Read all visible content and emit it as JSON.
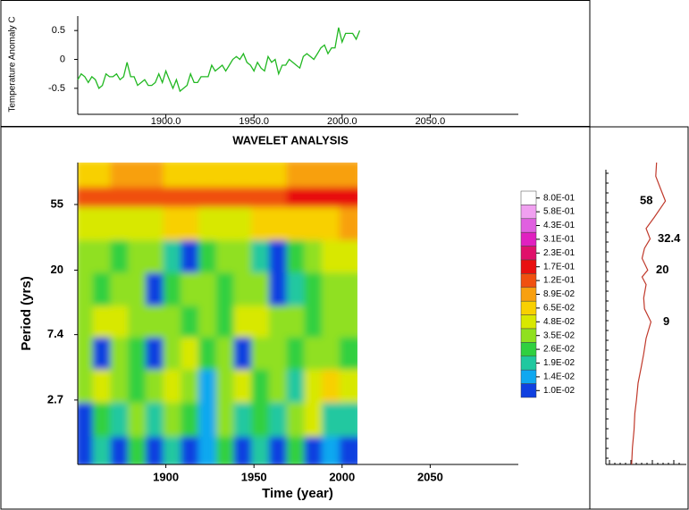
{
  "chart_data": [
    {
      "type": "line",
      "ylabel": "Temperature Anomaly C",
      "color": "#22b822",
      "x": [
        1850,
        1852,
        1854,
        1856,
        1858,
        1860,
        1862,
        1864,
        1866,
        1868,
        1870,
        1872,
        1874,
        1876,
        1878,
        1880,
        1882,
        1884,
        1886,
        1888,
        1890,
        1892,
        1894,
        1896,
        1898,
        1900,
        1902,
        1904,
        1906,
        1908,
        1910,
        1912,
        1914,
        1916,
        1918,
        1920,
        1922,
        1924,
        1926,
        1928,
        1930,
        1932,
        1934,
        1936,
        1938,
        1940,
        1942,
        1944,
        1946,
        1948,
        1950,
        1952,
        1954,
        1956,
        1958,
        1960,
        1962,
        1964,
        1966,
        1968,
        1970,
        1972,
        1974,
        1976,
        1978,
        1980,
        1982,
        1984,
        1986,
        1988,
        1990,
        1992,
        1994,
        1996,
        1998,
        2000,
        2002,
        2004,
        2006,
        2008,
        2010
      ],
      "values": [
        -0.35,
        -0.25,
        -0.3,
        -0.4,
        -0.3,
        -0.35,
        -0.5,
        -0.45,
        -0.25,
        -0.3,
        -0.3,
        -0.25,
        -0.35,
        -0.3,
        -0.05,
        -0.3,
        -0.3,
        -0.45,
        -0.4,
        -0.35,
        -0.45,
        -0.45,
        -0.4,
        -0.25,
        -0.4,
        -0.2,
        -0.35,
        -0.5,
        -0.35,
        -0.55,
        -0.5,
        -0.45,
        -0.25,
        -0.4,
        -0.4,
        -0.3,
        -0.3,
        -0.3,
        -0.1,
        -0.2,
        -0.15,
        -0.1,
        -0.2,
        -0.1,
        0.0,
        0.05,
        0.0,
        0.1,
        -0.05,
        -0.1,
        -0.2,
        -0.05,
        -0.15,
        -0.2,
        0.05,
        -0.05,
        0.0,
        -0.25,
        -0.1,
        -0.1,
        0.0,
        -0.05,
        -0.1,
        -0.15,
        0.05,
        0.1,
        0.05,
        0.0,
        0.1,
        0.2,
        0.25,
        0.1,
        0.2,
        0.2,
        0.55,
        0.3,
        0.45,
        0.45,
        0.45,
        0.35,
        0.5
      ],
      "xlim": [
        1850,
        2100
      ],
      "ylim": [
        -0.95,
        0.75
      ],
      "xticks": [
        {
          "value": 1900,
          "label": "1900.0"
        },
        {
          "value": 1950,
          "label": "1950.0"
        },
        {
          "value": 2000,
          "label": "2000.0"
        },
        {
          "value": 2050,
          "label": "2050.0"
        }
      ],
      "yticks": [
        -0.5,
        0,
        0.5
      ]
    },
    {
      "type": "heatmap",
      "title": "WAVELET ANALYSIS",
      "xlabel": "Time (year)",
      "ylabel": "Period (yrs)",
      "log_y": true,
      "xlim": [
        1850,
        2100
      ],
      "ylim": [
        1,
        105
      ],
      "xticks": [
        1900,
        1950,
        2000,
        2050
      ],
      "yticks": [
        2.7,
        7.4,
        20,
        55
      ],
      "x_bins": [
        1850,
        1860,
        1870,
        1880,
        1890,
        1900,
        1910,
        1920,
        1930,
        1940,
        1950,
        1960,
        1970,
        1980,
        1990,
        2000,
        2010
      ],
      "y_bins": [
        1,
        1.6,
        2.7,
        4.5,
        7.4,
        12,
        20,
        33,
        55,
        75,
        105
      ],
      "z": [
        [
          0.012,
          0.02,
          0.011,
          0.03,
          0.013,
          0.025,
          0.012,
          0.015,
          0.028,
          0.011,
          0.02,
          0.013,
          0.03,
          0.012,
          0.018,
          0.011
        ],
        [
          0.011,
          0.03,
          0.025,
          0.04,
          0.02,
          0.035,
          0.03,
          0.015,
          0.04,
          0.025,
          0.03,
          0.02,
          0.035,
          0.06,
          0.025,
          0.02
        ],
        [
          0.04,
          0.05,
          0.035,
          0.03,
          0.045,
          0.06,
          0.04,
          0.015,
          0.035,
          0.05,
          0.03,
          0.04,
          0.02,
          0.06,
          0.07,
          0.05
        ],
        [
          0.035,
          0.012,
          0.04,
          0.03,
          0.011,
          0.04,
          0.05,
          0.03,
          0.04,
          0.012,
          0.035,
          0.04,
          0.03,
          0.035,
          0.04,
          0.03
        ],
        [
          0.04,
          0.05,
          0.06,
          0.045,
          0.04,
          0.035,
          0.03,
          0.04,
          0.03,
          0.05,
          0.055,
          0.035,
          0.04,
          0.03,
          0.045,
          0.04
        ],
        [
          0.035,
          0.03,
          0.04,
          0.035,
          0.013,
          0.03,
          0.04,
          0.035,
          0.03,
          0.04,
          0.035,
          0.013,
          0.02,
          0.03,
          0.035,
          0.04
        ],
        [
          0.04,
          0.035,
          0.03,
          0.04,
          0.035,
          0.02,
          0.012,
          0.03,
          0.035,
          0.04,
          0.02,
          0.012,
          0.03,
          0.04,
          0.05,
          0.055
        ],
        [
          0.05,
          0.06,
          0.055,
          0.05,
          0.06,
          0.07,
          0.065,
          0.06,
          0.055,
          0.06,
          0.065,
          0.07,
          0.075,
          0.08,
          0.085,
          0.09
        ],
        [
          0.14,
          0.15,
          0.15,
          0.14,
          0.15,
          0.14,
          0.14,
          0.15,
          0.14,
          0.15,
          0.16,
          0.16,
          0.18,
          0.19,
          0.2,
          0.2
        ],
        [
          0.07,
          0.08,
          0.09,
          0.1,
          0.09,
          0.08,
          0.07,
          0.075,
          0.08,
          0.07,
          0.075,
          0.08,
          0.09,
          0.1,
          0.1,
          0.095
        ]
      ],
      "colorbar": {
        "levels": [
          {
            "value": 0.8,
            "label": "8.0E-01"
          },
          {
            "value": 0.58,
            "label": "5.8E-01"
          },
          {
            "value": 0.43,
            "label": "4.3E-01"
          },
          {
            "value": 0.31,
            "label": "3.1E-01"
          },
          {
            "value": 0.23,
            "label": "2.3E-01"
          },
          {
            "value": 0.17,
            "label": "1.7E-01"
          },
          {
            "value": 0.12,
            "label": "1.2E-01"
          },
          {
            "value": 0.089,
            "label": "8.9E-02"
          },
          {
            "value": 0.065,
            "label": "6.5E-02"
          },
          {
            "value": 0.048,
            "label": "4.8E-02"
          },
          {
            "value": 0.035,
            "label": "3.5E-02"
          },
          {
            "value": 0.026,
            "label": "2.6E-02"
          },
          {
            "value": 0.019,
            "label": "1.9E-02"
          },
          {
            "value": 0.014,
            "label": "1.4E-02"
          },
          {
            "value": 0.01,
            "label": "1.0E-02"
          }
        ],
        "colors": [
          "#ffffff",
          "#f0a0f0",
          "#e060e0",
          "#e020c0",
          "#e0106a",
          "#e81010",
          "#f05010",
          "#f8a010",
          "#f8d000",
          "#d8e800",
          "#90e020",
          "#30d040",
          "#20c8a0",
          "#10a8f0",
          "#1040e0"
        ]
      }
    },
    {
      "type": "line",
      "orientation": "horizontal",
      "color": "#c0392b",
      "log_y": true,
      "y": [
        1,
        1.3,
        1.7,
        2.2,
        2.7,
        3.5,
        4.5,
        5.5,
        7,
        9,
        11,
        13,
        16,
        18,
        20,
        24,
        28,
        32.4,
        38,
        45,
        58,
        70,
        85,
        105
      ],
      "values": [
        0.32,
        0.33,
        0.35,
        0.36,
        0.38,
        0.4,
        0.44,
        0.47,
        0.5,
        0.56,
        0.48,
        0.47,
        0.5,
        0.45,
        0.52,
        0.45,
        0.48,
        0.55,
        0.5,
        0.6,
        0.74,
        0.68,
        0.62,
        0.63
      ],
      "xlim": [
        0,
        1
      ],
      "ylim": [
        1,
        105
      ],
      "annotations": [
        9,
        20,
        32.4,
        58
      ]
    }
  ]
}
